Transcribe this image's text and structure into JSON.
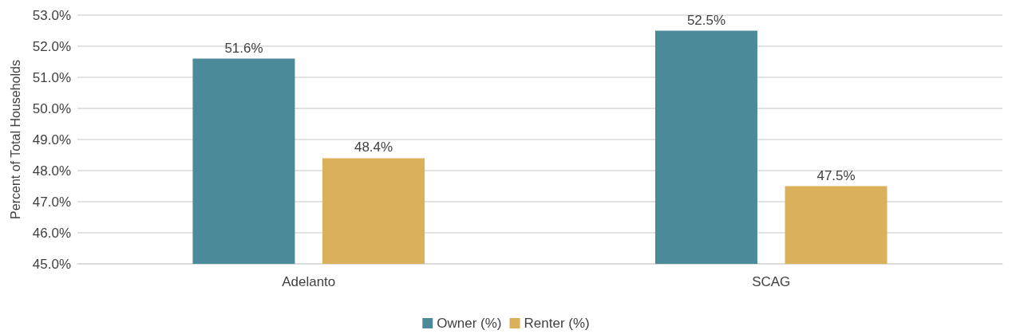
{
  "chart_data": {
    "type": "bar",
    "ylabel": "Percent of Total Households",
    "categories": [
      "Adelanto",
      "SCAG"
    ],
    "series": [
      {
        "name": "Owner (%)",
        "color": "#4a8a99",
        "values": [
          51.6,
          52.5
        ],
        "value_labels": [
          "51.6%",
          "52.5%"
        ]
      },
      {
        "name": "Renter (%)",
        "color": "#dbb05a",
        "values": [
          48.4,
          47.5
        ],
        "value_labels": [
          "48.4%",
          "47.5%"
        ]
      }
    ],
    "ylim": [
      45,
      53
    ],
    "yticks": [
      {
        "value": 45,
        "label": "45.0%"
      },
      {
        "value": 46,
        "label": "46.0%"
      },
      {
        "value": 47,
        "label": "47.0%"
      },
      {
        "value": 48,
        "label": "48.0%"
      },
      {
        "value": 49,
        "label": "49.0%"
      },
      {
        "value": 50,
        "label": "50.0%"
      },
      {
        "value": 51,
        "label": "51.0%"
      },
      {
        "value": 52,
        "label": "52.0%"
      },
      {
        "value": 53,
        "label": "53.0%"
      }
    ],
    "grid": "y",
    "legend": "bottom"
  }
}
